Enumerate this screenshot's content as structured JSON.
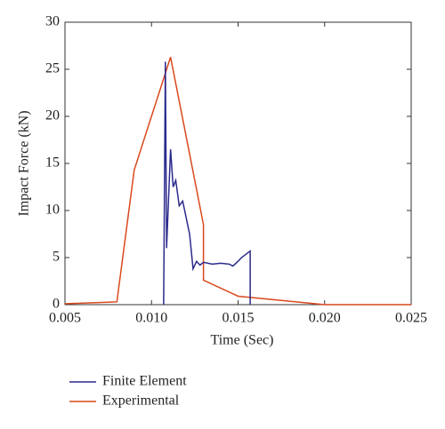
{
  "chart_data": {
    "type": "line",
    "xlabel": "Time (Sec)",
    "ylabel": "Impact Force (kN)",
    "xlim": [
      0.005,
      0.025
    ],
    "xticks": [
      0.005,
      {
        "value": 0.01,
        "label": "0.010"
      },
      0.015,
      {
        "value": 0.02,
        "label": "0.020"
      },
      0.025
    ],
    "ylim": [
      0,
      30
    ],
    "yticks": [
      0,
      5,
      10,
      15,
      20,
      25,
      30
    ],
    "series": [
      {
        "name": "Finite Element",
        "color": "#2b2a8c",
        "x": [
          0.0107,
          0.0107,
          0.0108,
          0.01087,
          0.0111,
          0.01125,
          0.0114,
          0.0116,
          0.0118,
          0.0122,
          0.0124,
          0.0126,
          0.0128,
          0.013,
          0.0135,
          0.014,
          0.0145,
          0.0147,
          0.015,
          0.0152,
          0.0157,
          0.0157
        ],
        "values": [
          0,
          0,
          25.8,
          6,
          16.5,
          12.5,
          13.2,
          10.5,
          11,
          7.5,
          3.8,
          4.6,
          4.2,
          4.5,
          4.3,
          4.4,
          4.3,
          4.1,
          4.6,
          5.0,
          5.7,
          0
        ]
      },
      {
        "name": "Experimental",
        "color": "#d9481c",
        "x": [
          0.005,
          0.008,
          0.009,
          0.0111,
          0.013,
          0.013,
          0.015,
          0.02,
          0.025
        ],
        "values": [
          0.1,
          0.3,
          14.3,
          26.3,
          8.5,
          2.6,
          0.9,
          0,
          0
        ]
      }
    ]
  }
}
